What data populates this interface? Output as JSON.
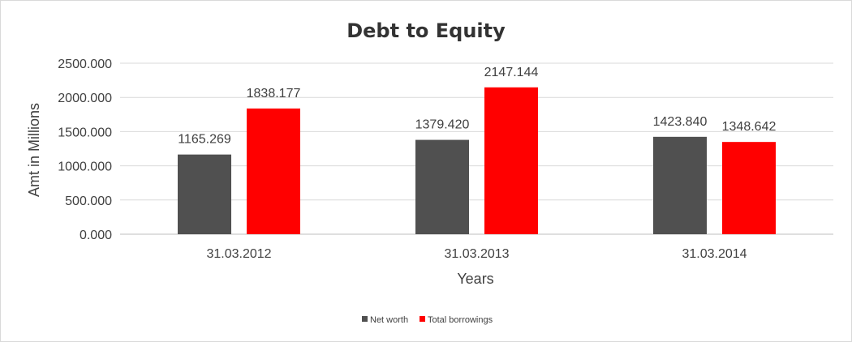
{
  "chart_data": {
    "type": "bar",
    "title": "Debt to Equity",
    "xlabel": "Years",
    "ylabel": "Amt in Millions",
    "categories": [
      "31.03.2012",
      "31.03.2013",
      "31.03.2014"
    ],
    "series": [
      {
        "name": "Net worth",
        "values": [
          1165.269,
          1379.42,
          1423.84
        ],
        "color": "#505050",
        "labels": [
          "1165.269",
          "1379.420",
          "1423.840"
        ]
      },
      {
        "name": "Total borrowings",
        "values": [
          1838.177,
          2147.144,
          1348.642
        ],
        "color": "#ff0000",
        "labels": [
          "1838.177",
          "2147.144",
          "1348.642"
        ]
      }
    ],
    "ylim": [
      0,
      2500
    ],
    "yticks": [
      "0.000",
      "500.000",
      "1000.000",
      "1500.000",
      "2000.000",
      "2500.000"
    ],
    "ytick_values": [
      0,
      500,
      1000,
      1500,
      2000,
      2500
    ],
    "grid": true,
    "legend_position": "bottom"
  }
}
